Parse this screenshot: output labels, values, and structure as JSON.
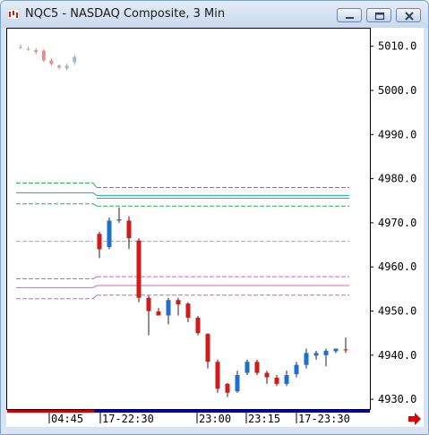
{
  "window": {
    "title": "NQC5 - NASDAQ Composite, 3 Min",
    "buttons": [
      "minimize",
      "maximize",
      "close"
    ]
  },
  "colors": {
    "up_candle": "#1f6fd1",
    "down_candle": "#d11b1b",
    "prev_session_up": "#9ab8de",
    "prev_session_down": "#e48f8f",
    "green_lines": "#2fae55",
    "teal_line": "#17a3b0",
    "gray_line": "#aaaaaa",
    "pink_lines": "#e060a8",
    "session_bar_left": "#cc0000",
    "session_bar_right": "#0000aa",
    "scroll_arrow": "#e00000"
  },
  "icons": {
    "app": "chart-app-icon",
    "scroll": "scroll-right-arrow-icon"
  },
  "chart_data": {
    "type": "candlestick",
    "title": "NQC5 - NASDAQ Composite, 3 Min",
    "ylim": [
      4928,
      5014
    ],
    "y_ticks": [
      5010.0,
      5000.0,
      4990.0,
      4980.0,
      4970.0,
      4960.0,
      4950.0,
      4940.0,
      4930.0
    ],
    "y_tick_labels": [
      "5010.0",
      "5000.0",
      "4990.0",
      "4980.0",
      "4970.0",
      "4960.0",
      "4950.0",
      "4940.0",
      "4930.0"
    ],
    "x_labels": [
      "04:45",
      "17-22:30",
      "23:00",
      "23:15",
      "17-23:30"
    ],
    "grid": false,
    "candles": [
      {
        "session": "prev",
        "open": 5009.8,
        "high": 5010.4,
        "low": 5009.4,
        "close": 5009.8
      },
      {
        "session": "prev",
        "open": 5009.4,
        "high": 5009.9,
        "low": 5009.0,
        "close": 5009.4
      },
      {
        "session": "prev",
        "open": 5009.1,
        "high": 5009.6,
        "low": 5008.2,
        "close": 5008.7
      },
      {
        "session": "prev",
        "open": 5009.0,
        "high": 5009.3,
        "low": 5006.4,
        "close": 5006.8
      },
      {
        "session": "prev",
        "open": 5006.8,
        "high": 5007.3,
        "low": 5005.6,
        "close": 5006.0
      },
      {
        "session": "prev",
        "open": 5005.6,
        "high": 5005.9,
        "low": 5004.8,
        "close": 5005.2
      },
      {
        "session": "prev",
        "open": 5005.0,
        "high": 5006.0,
        "low": 5004.6,
        "close": 5005.6
      },
      {
        "session": "prev",
        "open": 5006.4,
        "high": 5008.0,
        "low": 5005.8,
        "close": 5007.6
      },
      {
        "session": "current",
        "open": 4967.5,
        "high": 4968.0,
        "low": 4962.0,
        "close": 4964.0
      },
      {
        "session": "current",
        "open": 4964.5,
        "high": 4971.2,
        "low": 4964.0,
        "close": 4970.5
      },
      {
        "session": "current",
        "open": 4970.5,
        "high": 4973.5,
        "low": 4970.0,
        "close": 4970.8
      },
      {
        "session": "current",
        "open": 4970.5,
        "high": 4971.5,
        "low": 4964.0,
        "close": 4966.5
      },
      {
        "session": "current",
        "open": 4966.0,
        "high": 4966.5,
        "low": 4952.0,
        "close": 4953.0
      },
      {
        "session": "current",
        "open": 4953.0,
        "high": 4953.5,
        "low": 4944.5,
        "close": 4950.0
      },
      {
        "session": "current",
        "open": 4949.9,
        "high": 4950.7,
        "low": 4949.0,
        "close": 4949.0
      },
      {
        "session": "current",
        "open": 4949.0,
        "high": 4953.0,
        "low": 4947.0,
        "close": 4952.5
      },
      {
        "session": "current",
        "open": 4952.5,
        "high": 4953.0,
        "low": 4949.0,
        "close": 4951.5
      },
      {
        "session": "current",
        "open": 4951.7,
        "high": 4952.0,
        "low": 4947.5,
        "close": 4948.5
      },
      {
        "session": "current",
        "open": 4948.5,
        "high": 4948.9,
        "low": 4944.5,
        "close": 4945.0
      },
      {
        "session": "current",
        "open": 4944.8,
        "high": 4945.0,
        "low": 4937.0,
        "close": 4938.5
      },
      {
        "session": "current",
        "open": 4938.5,
        "high": 4939.0,
        "low": 4931.5,
        "close": 4932.4
      },
      {
        "session": "current",
        "open": 4933.5,
        "high": 4933.7,
        "low": 4930.5,
        "close": 4931.5
      },
      {
        "session": "current",
        "open": 4931.8,
        "high": 4936.5,
        "low": 4931.5,
        "close": 4935.5
      },
      {
        "session": "current",
        "open": 4936.0,
        "high": 4939.0,
        "low": 4935.5,
        "close": 4938.5
      },
      {
        "session": "current",
        "open": 4938.5,
        "high": 4939.0,
        "low": 4935.5,
        "close": 4936.0
      },
      {
        "session": "current",
        "open": 4936.0,
        "high": 4936.5,
        "low": 4933.5,
        "close": 4935.0
      },
      {
        "session": "current",
        "open": 4934.9,
        "high": 4935.5,
        "low": 4933.0,
        "close": 4933.5
      },
      {
        "session": "current",
        "open": 4933.5,
        "high": 4936.5,
        "low": 4933.0,
        "close": 4935.5
      },
      {
        "session": "current",
        "open": 4935.7,
        "high": 4938.5,
        "low": 4935.0,
        "close": 4937.8
      },
      {
        "session": "current",
        "open": 4937.8,
        "high": 4941.5,
        "low": 4937.0,
        "close": 4940.5
      },
      {
        "session": "current",
        "open": 4939.9,
        "high": 4941.0,
        "low": 4939.0,
        "close": 4940.5
      },
      {
        "session": "current",
        "open": 4940.0,
        "high": 4941.5,
        "low": 4937.5,
        "close": 4941.0
      },
      {
        "session": "current",
        "open": 4940.9,
        "high": 4941.5,
        "low": 4940.5,
        "close": 4941.5
      },
      {
        "session": "current",
        "open": 4941.3,
        "high": 4944.0,
        "low": 4940.5,
        "close": 4941.1
      }
    ],
    "levels": [
      {
        "color_key": "green_lines",
        "style": "dashed",
        "prev": 4979.0,
        "current": 4978.0
      },
      {
        "color_key": "teal_line",
        "style": "solid",
        "prev": 4976.8,
        "current": 4976.2
      },
      {
        "color_key": "teal_line",
        "style": "solid",
        "prev": null,
        "current": 4975.6
      },
      {
        "color_key": "green_lines",
        "style": "dashed",
        "prev": 4974.3,
        "current": 4973.8
      },
      {
        "color_key": "gray_line",
        "style": "dashed",
        "prev": 4965.8,
        "current": 4965.8
      },
      {
        "color_key": "pink_lines",
        "style": "dashed",
        "prev": 4957.3,
        "current": 4957.8
      },
      {
        "color_key": "pink_lines",
        "style": "solid",
        "prev": 4955.3,
        "current": 4955.8
      },
      {
        "color_key": "pink_lines",
        "style": "dashed",
        "prev": 4952.8,
        "current": 4953.6
      }
    ]
  }
}
